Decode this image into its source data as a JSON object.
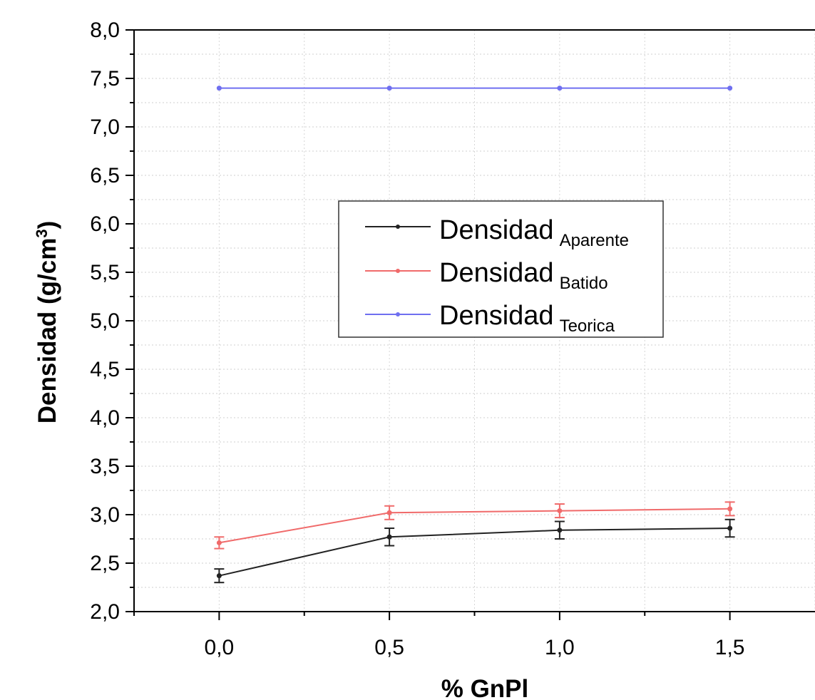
{
  "chart_data": {
    "type": "line",
    "xlabel": "% GnPl",
    "ylabel": "Densidad (g/cm",
    "ylabel_sup": "3",
    "ylabel_close": ")",
    "x": [
      0.0,
      0.5,
      1.0,
      1.5
    ],
    "xlim": [
      -0.25,
      1.75
    ],
    "ylim": [
      2.0,
      8.0
    ],
    "x_ticks": [
      "0,0",
      "0,5",
      "1,0",
      "1,5"
    ],
    "x_tick_values": [
      0.0,
      0.5,
      1.0,
      1.5
    ],
    "y_ticks": [
      "2,0",
      "2,5",
      "3,0",
      "3,5",
      "4,0",
      "4,5",
      "5,0",
      "5,5",
      "6,0",
      "6,5",
      "7,0",
      "7,5",
      "8,0"
    ],
    "y_tick_values": [
      2.0,
      2.5,
      3.0,
      3.5,
      4.0,
      4.5,
      5.0,
      5.5,
      6.0,
      6.5,
      7.0,
      7.5,
      8.0
    ],
    "grid": true,
    "legend_position": "center-left",
    "series": [
      {
        "name": "Densidad",
        "subscript": "Aparente",
        "color": "#222222",
        "values": [
          2.37,
          2.77,
          2.84,
          2.86
        ],
        "errors": [
          0.07,
          0.09,
          0.09,
          0.09
        ]
      },
      {
        "name": "Densidad",
        "subscript": "Batido",
        "color": "#f06a6a",
        "values": [
          2.71,
          3.02,
          3.04,
          3.06
        ],
        "errors": [
          0.06,
          0.07,
          0.07,
          0.07
        ]
      },
      {
        "name": "Densidad",
        "subscript": "Teorica",
        "color": "#6f6ff0",
        "values": [
          7.4,
          7.4,
          7.4,
          7.4
        ],
        "errors": [
          0,
          0,
          0,
          0
        ]
      }
    ]
  }
}
